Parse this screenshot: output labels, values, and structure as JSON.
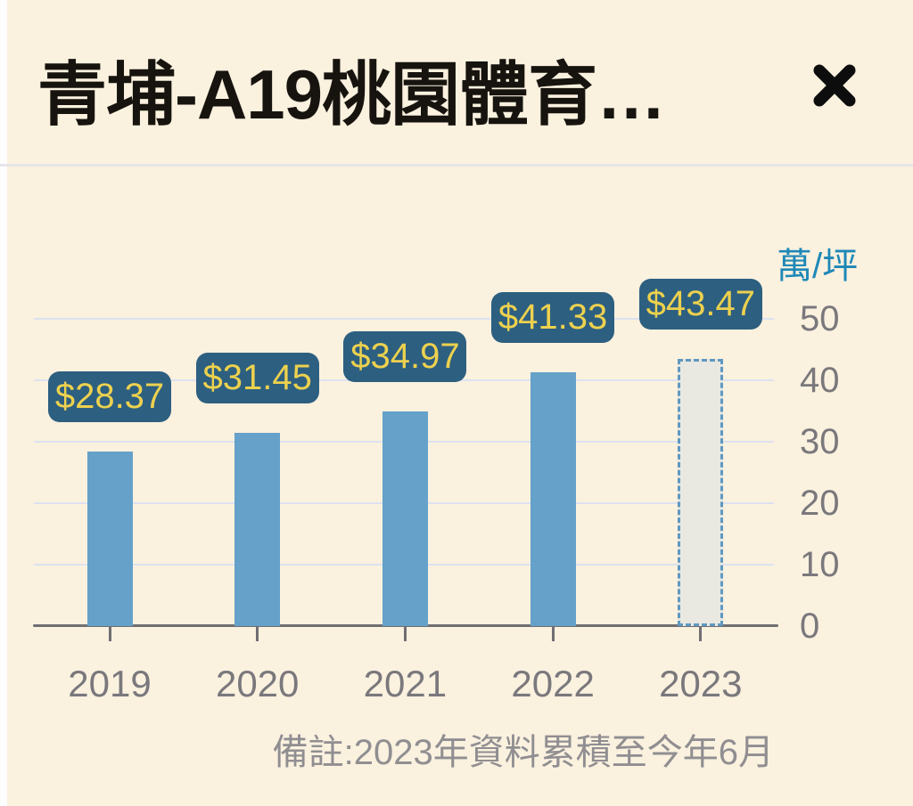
{
  "header": {
    "title": "青埔-A19桃園體育…"
  },
  "theme": {
    "background": "#faf1df",
    "title_text": "#17140f",
    "divider": "#e7e5ea",
    "left_strip": "#fdfdfe"
  },
  "chart_data": {
    "type": "bar",
    "title": "青埔-A19桃園體育…",
    "unit_label": "萬/坪",
    "categories": [
      "2019",
      "2020",
      "2021",
      "2022",
      "2023"
    ],
    "values": [
      28.37,
      31.45,
      34.97,
      41.33,
      43.47
    ],
    "bar_labels": [
      "$28.37",
      "$31.45",
      "$34.97",
      "$41.33",
      "$43.47"
    ],
    "estimated_category": "2023",
    "yticks": [
      0,
      10,
      20,
      30,
      40,
      50
    ],
    "ylim": [
      0,
      50
    ],
    "grid": true,
    "legend": "none",
    "y_axis_side": "right",
    "note": "備註:2023年資料累積至今年6月",
    "colors": {
      "bar": "#65a1c9",
      "estimated_bar_fill": "#e9e8e1",
      "estimated_bar_border": "#5f98c1",
      "value_label_bg": "#2d5f80",
      "value_label_text": "#edd14e",
      "unit_text": "#1e88b7",
      "axis_text": "#7a787c",
      "gridline": "#dde2f1",
      "axis_line": "#706e72",
      "note_text": "#908e91"
    }
  }
}
